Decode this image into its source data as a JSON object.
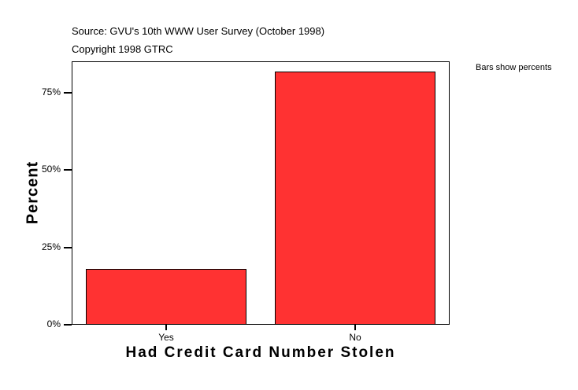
{
  "header": {
    "source": "Source: GVU's 10th WWW User Survey (October 1998)",
    "copyright": "Copyright 1998 GTRC"
  },
  "chart_data": {
    "type": "bar",
    "title": "",
    "categories": [
      "Yes",
      "No"
    ],
    "values": [
      18,
      82
    ],
    "xlabel": "Had Credit Card Number Stolen",
    "ylabel": "Percent",
    "yticks": [
      {
        "value": 0,
        "label": "0%"
      },
      {
        "value": 25,
        "label": "25%"
      },
      {
        "value": 50,
        "label": "50%"
      },
      {
        "value": 75,
        "label": "75%"
      }
    ],
    "ylim": [
      0,
      85.2
    ],
    "legend_note": "Bars show percents",
    "legend_position": "right-outside-top",
    "grid": false,
    "colors": {
      "bar_fill": "#FF3232",
      "bar_border": "#000000",
      "frame": "#000000",
      "background": "#FFFFFF",
      "text": "#000000"
    }
  }
}
